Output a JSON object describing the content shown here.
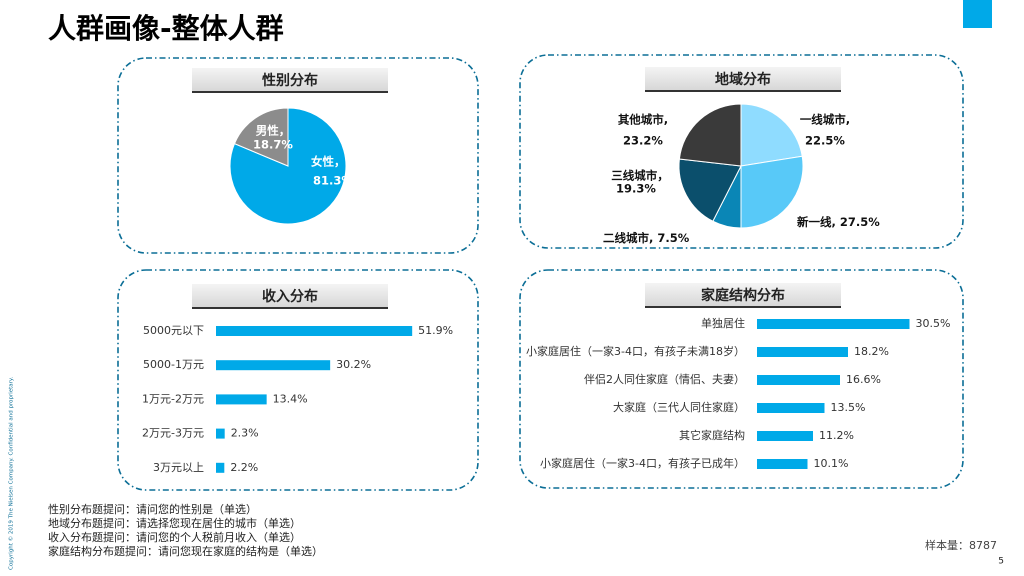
{
  "title": "人群画像-整体人群",
  "chart_data": [
    {
      "type": "pie",
      "title": "性别分布",
      "categories": [
        "女性，",
        "男性，"
      ],
      "values": [
        81.3,
        18.7
      ],
      "value_labels": [
        "81.3%",
        "18.7%"
      ],
      "colors": [
        "#00a9e8",
        "#8c8c8c"
      ]
    },
    {
      "type": "pie",
      "title": "地域分布",
      "categories": [
        "一线城市,",
        "新一线,",
        "二线城市,",
        "三线城市，",
        "其他城市,"
      ],
      "values": [
        22.5,
        27.5,
        7.5,
        19.3,
        23.2
      ],
      "value_labels": [
        "22.5%",
        "27.5%",
        "7.5%",
        "19.3%",
        "23.2%"
      ],
      "colors": [
        "#8fdcff",
        "#58c9f8",
        "#0a86b6",
        "#0b4f6c",
        "#3a3a3a"
      ]
    },
    {
      "type": "hbar",
      "title": "收入分布",
      "categories": [
        "5000元以下",
        "5000-1万元",
        "1万元-2万元",
        "2万元-3万元",
        "3万元以上"
      ],
      "values": [
        51.9,
        30.2,
        13.4,
        2.3,
        2.2
      ],
      "value_labels": [
        "51.9%",
        "30.2%",
        "13.4%",
        "2.3%",
        "2.2%"
      ],
      "color": "#00a9e8"
    },
    {
      "type": "hbar",
      "title": "家庭结构分布",
      "categories": [
        "单独居住",
        "小家庭居住（一家3-4口，有孩子未满18岁）",
        "伴侣2人同住家庭（情侣、夫妻）",
        "大家庭（三代人同住家庭）",
        "其它家庭结构",
        "小家庭居住（一家3-4口，有孩子已成年）"
      ],
      "values": [
        30.5,
        18.2,
        16.6,
        13.5,
        11.2,
        10.1
      ],
      "value_labels": [
        "30.5%",
        "18.2%",
        "16.6%",
        "13.5%",
        "11.2%",
        "10.1%"
      ],
      "color": "#00a9e8"
    }
  ],
  "notes": [
    "性别分布题提问：请问您的性别是（单选）",
    "地域分布题提问：请选择您现在居住的城市（单选）",
    "收入分布题提问：请问您的个人税前月收入（单选）",
    "家庭结构分布题提问：请问您现在家庭的结构是（单选）"
  ],
  "sample_size": "样本量：8787",
  "page": "5",
  "copyright": "Copyright © 2019 The Nielsen Company. Confidential and proprietary."
}
